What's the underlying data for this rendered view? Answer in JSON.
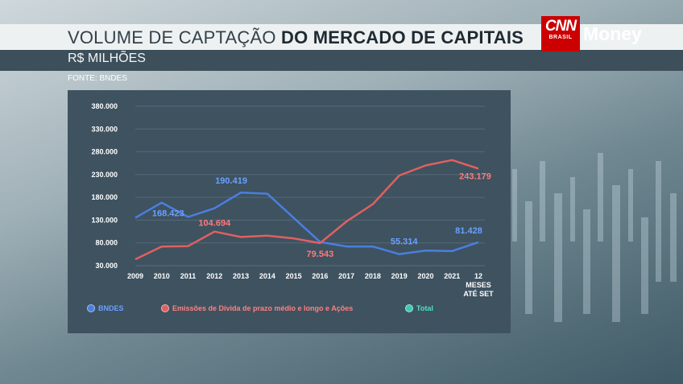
{
  "header": {
    "title_light": "VOLUME DE CAPTAÇÃO ",
    "title_bold": "DO MERCADO DE CAPITAIS",
    "subtitle": "R$ MILHÕES",
    "source": "FONTE: BNDES"
  },
  "brand": {
    "cnn": "CNN",
    "brasil": "BRASIL",
    "money": "Money"
  },
  "colors": {
    "bndes": "#4a7fe0",
    "emissoes": "#e06060",
    "total": "#3fc9b0",
    "panel": "#3e5260"
  },
  "chart_data": {
    "type": "line",
    "title": "VOLUME DE CAPTAÇÃO DO MERCADO DE CAPITAIS",
    "ylabel": "R$ MILHÕES",
    "categories": [
      "2009",
      "2010",
      "2011",
      "2012",
      "2013",
      "2014",
      "2015",
      "2016",
      "2017",
      "2018",
      "2019",
      "2020",
      "2021",
      "12 MESES ATÉ SET"
    ],
    "category_lines": [
      [
        "2009"
      ],
      [
        "2010"
      ],
      [
        "2011"
      ],
      [
        "2012"
      ],
      [
        "2013"
      ],
      [
        "2014"
      ],
      [
        "2015"
      ],
      [
        "2016"
      ],
      [
        "2017"
      ],
      [
        "2018"
      ],
      [
        "2019"
      ],
      [
        "2020"
      ],
      [
        "2021"
      ],
      [
        "12",
        "MESES",
        "ATÉ SET"
      ]
    ],
    "yticks": [
      30000,
      80000,
      130000,
      180000,
      230000,
      280000,
      330000,
      380000
    ],
    "ytick_labels": [
      "30.000",
      "80.000",
      "130.000",
      "180.000",
      "230.000",
      "280.000",
      "330.000",
      "380.000"
    ],
    "ylim": [
      30000,
      380000
    ],
    "grid": true,
    "series": [
      {
        "name": "BNDES",
        "key": "bndes",
        "values": [
          135000,
          168423,
          137000,
          156000,
          190419,
          188000,
          135000,
          82000,
          72000,
          72000,
          55314,
          63000,
          62000,
          81428
        ]
      },
      {
        "name": "Emissões de Dívida de prazo médio e longo e Ações",
        "key": "emissoes",
        "values": [
          44000,
          72000,
          73000,
          104694,
          93000,
          96000,
          90000,
          79543,
          127000,
          165000,
          228000,
          250000,
          262000,
          243179
        ]
      }
    ],
    "data_labels": [
      {
        "series": "bndes",
        "index": 1,
        "text": "168.423"
      },
      {
        "series": "bndes",
        "index": 4,
        "text": "190.419"
      },
      {
        "series": "bndes",
        "index": 10,
        "text": "55.314"
      },
      {
        "series": "bndes",
        "index": 13,
        "text": "81.428"
      },
      {
        "series": "emissoes",
        "index": 3,
        "text": "104.694"
      },
      {
        "series": "emissoes",
        "index": 7,
        "text": "79.543"
      },
      {
        "series": "emissoes",
        "index": 13,
        "text": "243.179"
      }
    ],
    "legend": [
      {
        "label": "BNDES",
        "key": "bndes"
      },
      {
        "label": "Emissões de Dívida de prazo médio e longo e Ações",
        "key": "emissoes"
      },
      {
        "label": "Total",
        "key": "total"
      }
    ]
  }
}
